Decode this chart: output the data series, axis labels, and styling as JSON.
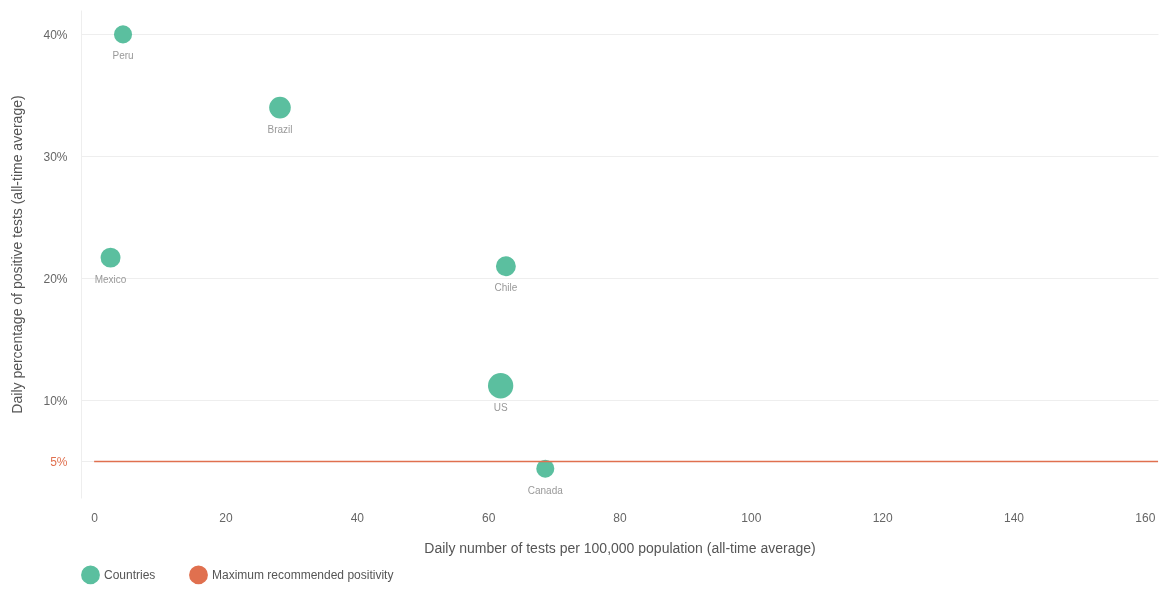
{
  "chart_data": {
    "type": "bubble",
    "xlabel": "Daily number of tests per 100,000 population (all-time average)",
    "ylabel": "Daily percentage of positive tests (all-time average)",
    "xlim": [
      -2,
      162
    ],
    "xticks": [
      0,
      20,
      40,
      60,
      80,
      100,
      120,
      140,
      160
    ],
    "yticks": [
      {
        "value": 5,
        "label": "5%"
      },
      {
        "value": 10,
        "label": "10%"
      },
      {
        "value": 20,
        "label": "20%"
      },
      {
        "value": 30,
        "label": "30%"
      },
      {
        "value": 40,
        "label": "40%"
      }
    ],
    "ylim": [
      2,
      42
    ],
    "grid": "y",
    "legend": "bottom left",
    "series": [
      {
        "name": "Countries",
        "color": "#5bbf9f",
        "x": [
          4.4,
          28.3,
          2.5,
          62.7,
          61.9,
          68.7
        ],
        "values": [
          40,
          34.0,
          21.7,
          21.0,
          11.2,
          4.4
        ],
        "sizes": [
          0.51,
          0.73,
          0.62,
          0.62,
          1,
          0.51
        ]
      },
      {
        "name": "Maximum recommended positivity",
        "type": "line",
        "color": "#e0704f",
        "x": [
          0,
          162
        ],
        "values": [
          5,
          5
        ]
      }
    ],
    "annotations": [
      {
        "text": "Peru",
        "x": 4.4,
        "y": 40
      },
      {
        "text": "Brazil",
        "x": 28.3,
        "y": 34.0
      },
      {
        "text": "Mexico",
        "x": 2.5,
        "y": 21.7
      },
      {
        "text": "Chile",
        "x": 62.7,
        "y": 21.0
      },
      {
        "text": "US",
        "x": 61.9,
        "y": 11.2
      },
      {
        "text": "Canada",
        "x": 68.7,
        "y": 4.4
      }
    ]
  }
}
